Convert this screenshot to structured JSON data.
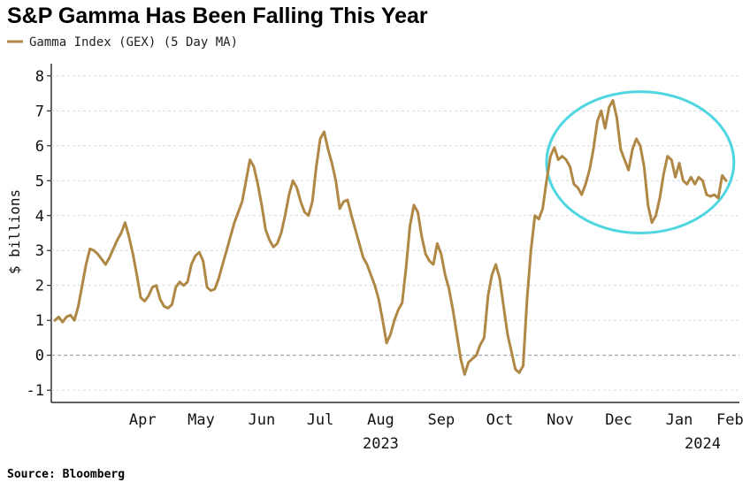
{
  "chart_data": {
    "type": "line",
    "title": "S&P Gamma Has Been Falling This Year",
    "ylabel": "$ billions",
    "xlabel": "",
    "ylim": [
      -1.3,
      8.3
    ],
    "yticks": [
      -1,
      0,
      1,
      2,
      3,
      4,
      5,
      6,
      7,
      8
    ],
    "x_range": [
      "2023-03-01",
      "2024-02-13"
    ],
    "month_ticks": [
      {
        "label": "Apr",
        "date": "2023-04-15"
      },
      {
        "label": "May",
        "date": "2023-05-15"
      },
      {
        "label": "Jun",
        "date": "2023-06-15"
      },
      {
        "label": "Jul",
        "date": "2023-07-15"
      },
      {
        "label": "Aug",
        "date": "2023-08-15"
      },
      {
        "label": "Sep",
        "date": "2023-09-15"
      },
      {
        "label": "Oct",
        "date": "2023-10-15"
      },
      {
        "label": "Nov",
        "date": "2023-11-15"
      },
      {
        "label": "Dec",
        "date": "2023-12-15"
      },
      {
        "label": "Jan",
        "date": "2024-01-15"
      },
      {
        "label": "Feb",
        "date": "2024-02-10"
      }
    ],
    "year_labels": [
      {
        "label": "2023",
        "date": "2023-08-15"
      },
      {
        "label": "2024",
        "date": "2024-01-27"
      }
    ],
    "zero_line": "dashed",
    "grid": "horizontal-dashed",
    "legend_position": "top-left",
    "annotation": {
      "type": "ellipse",
      "color": "#4fd6e0",
      "x_start": "2023-11-08",
      "x_end": "2024-02-12",
      "y_low": 3.5,
      "y_high": 7.55
    },
    "series": [
      {
        "name": "Gamma Index (GEX) (5 Day MA)",
        "color": "#b08845",
        "points": [
          [
            "2023-03-01",
            1.0
          ],
          [
            "2023-03-03",
            1.1
          ],
          [
            "2023-03-05",
            0.95
          ],
          [
            "2023-03-07",
            1.1
          ],
          [
            "2023-03-09",
            1.15
          ],
          [
            "2023-03-11",
            1.0
          ],
          [
            "2023-03-13",
            1.4
          ],
          [
            "2023-03-15",
            2.0
          ],
          [
            "2023-03-17",
            2.6
          ],
          [
            "2023-03-19",
            3.05
          ],
          [
            "2023-03-21",
            3.0
          ],
          [
            "2023-03-23",
            2.9
          ],
          [
            "2023-03-25",
            2.75
          ],
          [
            "2023-03-27",
            2.6
          ],
          [
            "2023-03-29",
            2.8
          ],
          [
            "2023-03-31",
            3.05
          ],
          [
            "2023-04-02",
            3.3
          ],
          [
            "2023-04-04",
            3.5
          ],
          [
            "2023-04-06",
            3.8
          ],
          [
            "2023-04-08",
            3.4
          ],
          [
            "2023-04-10",
            2.9
          ],
          [
            "2023-04-12",
            2.3
          ],
          [
            "2023-04-14",
            1.65
          ],
          [
            "2023-04-16",
            1.55
          ],
          [
            "2023-04-18",
            1.7
          ],
          [
            "2023-04-20",
            1.95
          ],
          [
            "2023-04-22",
            2.0
          ],
          [
            "2023-04-24",
            1.6
          ],
          [
            "2023-04-26",
            1.4
          ],
          [
            "2023-04-28",
            1.35
          ],
          [
            "2023-04-30",
            1.45
          ],
          [
            "2023-05-02",
            1.95
          ],
          [
            "2023-05-04",
            2.1
          ],
          [
            "2023-05-06",
            2.0
          ],
          [
            "2023-05-08",
            2.1
          ],
          [
            "2023-05-10",
            2.6
          ],
          [
            "2023-05-12",
            2.85
          ],
          [
            "2023-05-14",
            2.95
          ],
          [
            "2023-05-16",
            2.7
          ],
          [
            "2023-05-18",
            1.95
          ],
          [
            "2023-05-20",
            1.85
          ],
          [
            "2023-05-22",
            1.9
          ],
          [
            "2023-05-24",
            2.2
          ],
          [
            "2023-05-26",
            2.6
          ],
          [
            "2023-05-28",
            3.0
          ],
          [
            "2023-05-30",
            3.4
          ],
          [
            "2023-06-01",
            3.8
          ],
          [
            "2023-06-03",
            4.1
          ],
          [
            "2023-06-05",
            4.4
          ],
          [
            "2023-06-07",
            5.0
          ],
          [
            "2023-06-09",
            5.6
          ],
          [
            "2023-06-11",
            5.4
          ],
          [
            "2023-06-13",
            4.9
          ],
          [
            "2023-06-15",
            4.3
          ],
          [
            "2023-06-17",
            3.6
          ],
          [
            "2023-06-19",
            3.3
          ],
          [
            "2023-06-21",
            3.1
          ],
          [
            "2023-06-23",
            3.2
          ],
          [
            "2023-06-25",
            3.5
          ],
          [
            "2023-06-27",
            4.0
          ],
          [
            "2023-06-29",
            4.6
          ],
          [
            "2023-07-01",
            5.0
          ],
          [
            "2023-07-03",
            4.8
          ],
          [
            "2023-07-05",
            4.4
          ],
          [
            "2023-07-07",
            4.1
          ],
          [
            "2023-07-09",
            4.0
          ],
          [
            "2023-07-11",
            4.4
          ],
          [
            "2023-07-13",
            5.4
          ],
          [
            "2023-07-15",
            6.2
          ],
          [
            "2023-07-17",
            6.4
          ],
          [
            "2023-07-19",
            5.9
          ],
          [
            "2023-07-21",
            5.5
          ],
          [
            "2023-07-23",
            5.0
          ],
          [
            "2023-07-25",
            4.2
          ],
          [
            "2023-07-27",
            4.4
          ],
          [
            "2023-07-29",
            4.45
          ],
          [
            "2023-07-31",
            4.0
          ],
          [
            "2023-08-02",
            3.6
          ],
          [
            "2023-08-04",
            3.2
          ],
          [
            "2023-08-06",
            2.8
          ],
          [
            "2023-08-08",
            2.6
          ],
          [
            "2023-08-10",
            2.3
          ],
          [
            "2023-08-12",
            2.0
          ],
          [
            "2023-08-14",
            1.6
          ],
          [
            "2023-08-16",
            1.0
          ],
          [
            "2023-08-18",
            0.35
          ],
          [
            "2023-08-20",
            0.6
          ],
          [
            "2023-08-22",
            1.0
          ],
          [
            "2023-08-24",
            1.3
          ],
          [
            "2023-08-26",
            1.5
          ],
          [
            "2023-08-28",
            2.5
          ],
          [
            "2023-08-30",
            3.7
          ],
          [
            "2023-09-01",
            4.3
          ],
          [
            "2023-09-03",
            4.1
          ],
          [
            "2023-09-05",
            3.4
          ],
          [
            "2023-09-07",
            2.9
          ],
          [
            "2023-09-09",
            2.7
          ],
          [
            "2023-09-11",
            2.6
          ],
          [
            "2023-09-13",
            3.2
          ],
          [
            "2023-09-15",
            2.9
          ],
          [
            "2023-09-17",
            2.3
          ],
          [
            "2023-09-19",
            1.9
          ],
          [
            "2023-09-21",
            1.3
          ],
          [
            "2023-09-23",
            0.6
          ],
          [
            "2023-09-25",
            -0.1
          ],
          [
            "2023-09-27",
            -0.55
          ],
          [
            "2023-09-29",
            -0.2
          ],
          [
            "2023-10-01",
            -0.1
          ],
          [
            "2023-10-03",
            0.0
          ],
          [
            "2023-10-05",
            0.3
          ],
          [
            "2023-10-07",
            0.5
          ],
          [
            "2023-10-09",
            1.7
          ],
          [
            "2023-10-11",
            2.3
          ],
          [
            "2023-10-13",
            2.6
          ],
          [
            "2023-10-15",
            2.2
          ],
          [
            "2023-10-17",
            1.4
          ],
          [
            "2023-10-19",
            0.6
          ],
          [
            "2023-10-21",
            0.1
          ],
          [
            "2023-10-23",
            -0.4
          ],
          [
            "2023-10-25",
            -0.5
          ],
          [
            "2023-10-27",
            -0.3
          ],
          [
            "2023-10-29",
            1.6
          ],
          [
            "2023-10-31",
            3.0
          ],
          [
            "2023-11-02",
            4.0
          ],
          [
            "2023-11-04",
            3.9
          ],
          [
            "2023-11-06",
            4.2
          ],
          [
            "2023-11-08",
            5.0
          ],
          [
            "2023-11-10",
            5.7
          ],
          [
            "2023-11-12",
            5.95
          ],
          [
            "2023-11-14",
            5.6
          ],
          [
            "2023-11-16",
            5.7
          ],
          [
            "2023-11-18",
            5.6
          ],
          [
            "2023-11-20",
            5.4
          ],
          [
            "2023-11-22",
            4.9
          ],
          [
            "2023-11-24",
            4.8
          ],
          [
            "2023-11-26",
            4.6
          ],
          [
            "2023-11-28",
            4.9
          ],
          [
            "2023-11-30",
            5.3
          ],
          [
            "2023-12-02",
            5.9
          ],
          [
            "2023-12-04",
            6.7
          ],
          [
            "2023-12-06",
            7.0
          ],
          [
            "2023-12-08",
            6.5
          ],
          [
            "2023-12-10",
            7.1
          ],
          [
            "2023-12-12",
            7.3
          ],
          [
            "2023-12-14",
            6.8
          ],
          [
            "2023-12-16",
            5.9
          ],
          [
            "2023-12-18",
            5.6
          ],
          [
            "2023-12-20",
            5.3
          ],
          [
            "2023-12-22",
            5.9
          ],
          [
            "2023-12-24",
            6.2
          ],
          [
            "2023-12-26",
            6.0
          ],
          [
            "2023-12-28",
            5.4
          ],
          [
            "2023-12-30",
            4.3
          ],
          [
            "2024-01-01",
            3.8
          ],
          [
            "2024-01-03",
            4.0
          ],
          [
            "2024-01-05",
            4.5
          ],
          [
            "2024-01-07",
            5.2
          ],
          [
            "2024-01-09",
            5.7
          ],
          [
            "2024-01-11",
            5.6
          ],
          [
            "2024-01-13",
            5.1
          ],
          [
            "2024-01-15",
            5.5
          ],
          [
            "2024-01-17",
            5.0
          ],
          [
            "2024-01-19",
            4.9
          ],
          [
            "2024-01-21",
            5.1
          ],
          [
            "2024-01-23",
            4.9
          ],
          [
            "2024-01-25",
            5.1
          ],
          [
            "2024-01-27",
            5.0
          ],
          [
            "2024-01-29",
            4.6
          ],
          [
            "2024-01-31",
            4.55
          ],
          [
            "2024-02-02",
            4.6
          ],
          [
            "2024-02-04",
            4.5
          ],
          [
            "2024-02-06",
            5.15
          ],
          [
            "2024-02-08",
            5.0
          ]
        ]
      }
    ]
  },
  "source": "Source: Bloomberg"
}
